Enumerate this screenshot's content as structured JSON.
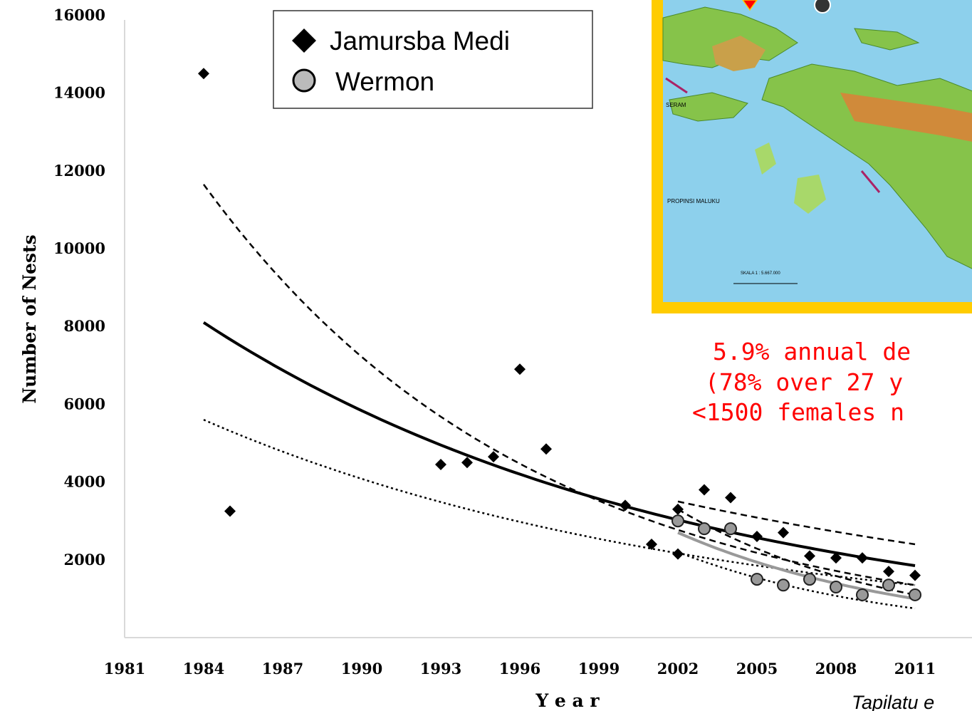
{
  "chart_data": {
    "type": "scatter",
    "xlabel": "Y e a r",
    "ylabel": "Number of Nests",
    "xlim": [
      1981,
      2013
    ],
    "ylim": [
      0,
      16000
    ],
    "x_ticks": [
      "1981",
      "1984",
      "1987",
      "1990",
      "1993",
      "1996",
      "1999",
      "2002",
      "2005",
      "2008",
      "2011"
    ],
    "y_ticks": [
      "2000",
      "4000",
      "6000",
      "8000",
      "10000",
      "12000",
      "14000",
      "16000"
    ],
    "legend_position": "top-center",
    "legend": [
      {
        "label": "Jamursba Medi",
        "marker": "diamond"
      },
      {
        "label": "Wermon",
        "marker": "circle"
      }
    ],
    "series": [
      {
        "name": "Jamursba Medi",
        "marker": "diamond",
        "color": "#000000",
        "points": [
          [
            1984,
            14500
          ],
          [
            1985,
            3250
          ],
          [
            1993,
            4450
          ],
          [
            1994,
            4500
          ],
          [
            1995,
            4650
          ],
          [
            1996,
            6900
          ],
          [
            1997,
            4850
          ],
          [
            2000,
            3400
          ],
          [
            2001,
            2400
          ],
          [
            2002,
            3300
          ],
          [
            2002,
            2150
          ],
          [
            2003,
            3800
          ],
          [
            2004,
            3600
          ],
          [
            2005,
            2600
          ],
          [
            2006,
            2700
          ],
          [
            2007,
            2100
          ],
          [
            2008,
            2050
          ],
          [
            2009,
            2050
          ],
          [
            2010,
            1700
          ],
          [
            2011,
            1600
          ]
        ]
      },
      {
        "name": "Wermon",
        "marker": "circle",
        "color": "#999999",
        "points": [
          [
            2002,
            3000
          ],
          [
            2003,
            2800
          ],
          [
            2004,
            2800
          ],
          [
            2005,
            1500
          ],
          [
            2006,
            1350
          ],
          [
            2007,
            1500
          ],
          [
            2008,
            1300
          ],
          [
            2009,
            1100
          ],
          [
            2010,
            1350
          ],
          [
            2011,
            1100
          ]
        ]
      }
    ],
    "trend_lines": [
      {
        "style": "solid",
        "color": "#000000",
        "x_range": [
          1984,
          2011
        ],
        "y_start": 8100,
        "y_end": 1850
      },
      {
        "style": "dashed",
        "color": "#000000",
        "x_range": [
          1984,
          2011
        ],
        "y_start": 11650,
        "y_end": 1350
      },
      {
        "style": "dashed",
        "color": "#000000",
        "x_range": [
          2002,
          2011
        ],
        "y_start": 3500,
        "y_end": 2400
      },
      {
        "style": "dotted",
        "color": "#000000",
        "x_range": [
          1984,
          2011
        ],
        "y_start": 5600,
        "y_end": 1350
      },
      {
        "style": "solid",
        "color": "#999999",
        "x_range": [
          2002,
          2011
        ],
        "y_start": 2700,
        "y_end": 1000
      },
      {
        "style": "dashed",
        "color": "#000000",
        "x_range": [
          2002,
          2011
        ],
        "y_start": 3300,
        "y_end": 1100
      },
      {
        "style": "dotted",
        "color": "#000000",
        "x_range": [
          2002,
          2011
        ],
        "y_start": 2200,
        "y_end": 750
      }
    ],
    "annotations": [
      "5.9% annual de",
      "(78% over 27 y",
      "<1500 females n"
    ]
  },
  "citation": "Tapilatu e",
  "colors": {
    "annotation": "#ff0000",
    "inset_border": "#ffcc00",
    "sea": "#7ec8e8",
    "land": "#7fbf3f"
  },
  "inset_map": {
    "labels": [
      "SERAM",
      "PROPINSI MALUKU",
      "SKALA 1 : 5.667.000"
    ],
    "marker": "location-marker",
    "compass": "compass-icon"
  }
}
